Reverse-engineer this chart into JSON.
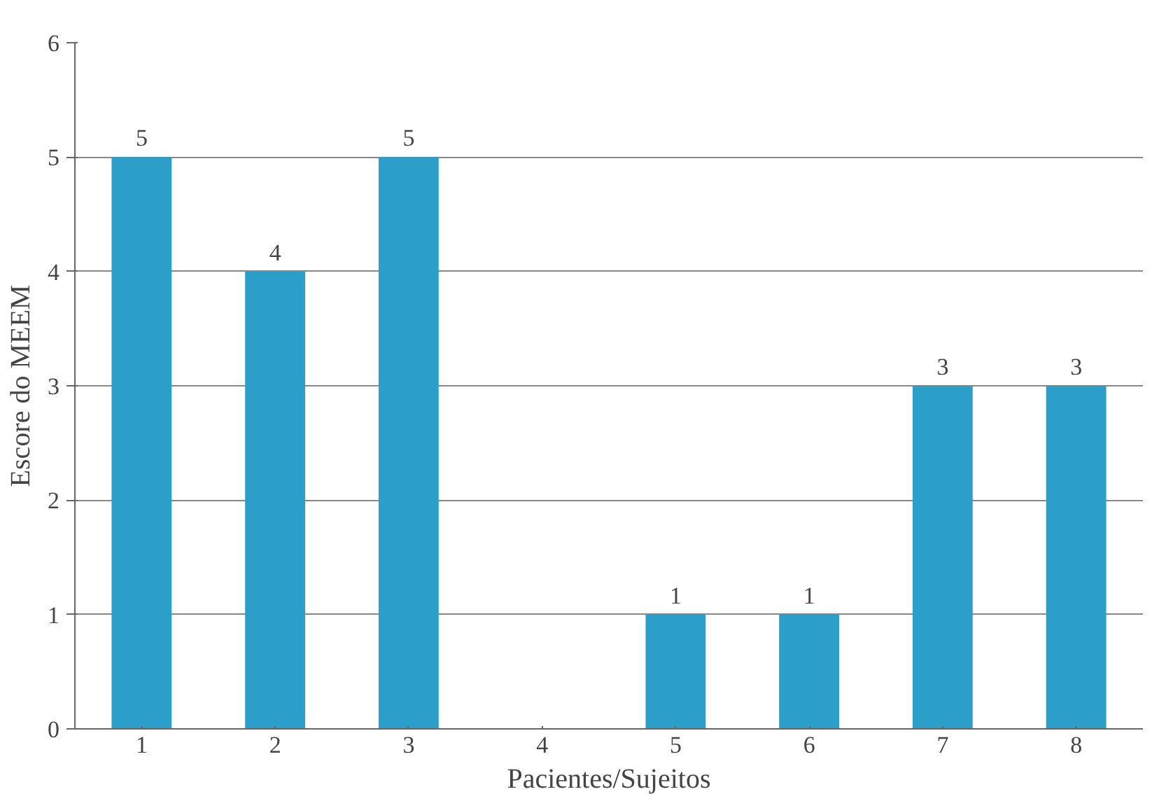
{
  "chart_data": {
    "type": "bar",
    "xlabel": "Pacientes/Sujeitos",
    "ylabel": "Escore do MEEM",
    "categories": [
      "1",
      "2",
      "3",
      "4",
      "5",
      "6",
      "7",
      "8"
    ],
    "values": [
      5,
      4,
      5,
      0,
      1,
      1,
      3,
      3
    ],
    "value_labels": [
      "5",
      "4",
      "5",
      null,
      "1",
      "1",
      "3",
      "3"
    ],
    "color": "#2b9fc9",
    "ylim": [
      0,
      6
    ],
    "yticks": [
      0,
      1,
      2,
      3,
      4,
      5,
      6
    ],
    "grid": "y"
  }
}
